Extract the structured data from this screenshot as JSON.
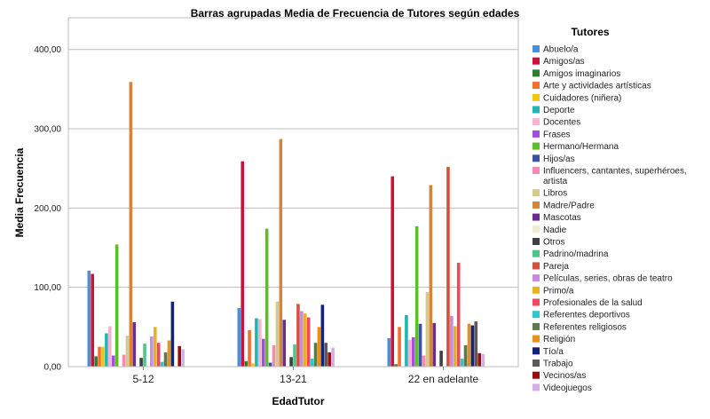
{
  "chart_data": {
    "type": "bar",
    "title": "Barras agrupadas Media de Frecuencia de Tutores según edades",
    "xlabel": "EdadTutor",
    "ylabel": "Media Frecuencia",
    "ylim": [
      0,
      440
    ],
    "yticks": [
      "0,00",
      "100,00",
      "200,00",
      "300,00",
      "400,00"
    ],
    "ytick_values": [
      0,
      100,
      200,
      300,
      400
    ],
    "grid": "horizontal",
    "legend_position": "right",
    "legend_title": "Tutores",
    "categories": [
      "5-12",
      "13-21",
      "22 en adelante"
    ],
    "series": [
      {
        "name": "Abuelo/a",
        "color": "#4a90d9",
        "values": [
          121,
          74,
          36
        ]
      },
      {
        "name": "Amigos/as",
        "color": "#d0103a",
        "values": [
          117,
          259,
          240
        ]
      },
      {
        "name": "Amigos imaginarios",
        "color": "#2e7d32",
        "values": [
          13,
          7,
          3
        ]
      },
      {
        "name": "Arte y actividades artísticas",
        "color": "#f26f30",
        "values": [
          25,
          46,
          50
        ]
      },
      {
        "name": "Cuidadores (niñera)",
        "color": "#f2c40f",
        "values": [
          25,
          4,
          0
        ]
      },
      {
        "name": "Deporte",
        "color": "#1fb7b0",
        "values": [
          42,
          61,
          65
        ]
      },
      {
        "name": "Docentes",
        "color": "#f7b2d0",
        "values": [
          51,
          60,
          34
        ]
      },
      {
        "name": "Frases",
        "color": "#a34dde",
        "values": [
          14,
          35,
          37
        ]
      },
      {
        "name": "Hermano/Hermana",
        "color": "#5cbf2a",
        "values": [
          154,
          174,
          177
        ]
      },
      {
        "name": "Hijos/as",
        "color": "#3f51a5",
        "values": [
          0,
          5,
          54
        ]
      },
      {
        "name": "Influencers, cantantes, superhéroes, artista",
        "color": "#f58bb0",
        "values": [
          15,
          27,
          14
        ]
      },
      {
        "name": "Libros",
        "color": "#d6c98e",
        "values": [
          39,
          82,
          94
        ]
      },
      {
        "name": "Madre/Padre",
        "color": "#d4843b",
        "values": [
          359,
          287,
          229
        ]
      },
      {
        "name": "Mascotas",
        "color": "#6a2c8f",
        "values": [
          56,
          59,
          55
        ]
      },
      {
        "name": "Nadie",
        "color": "#f0ead0",
        "values": [
          0,
          0,
          0
        ]
      },
      {
        "name": "Otros",
        "color": "#404040",
        "values": [
          11,
          12,
          20
        ]
      },
      {
        "name": "Padrino/madrina",
        "color": "#4fc48a",
        "values": [
          29,
          28,
          0
        ]
      },
      {
        "name": "Pareja",
        "color": "#d4503a",
        "values": [
          0,
          79,
          252
        ]
      },
      {
        "name": "Películas, series, obras de teatro",
        "color": "#c48be0",
        "values": [
          38,
          70,
          64
        ]
      },
      {
        "name": "Primo/a",
        "color": "#eab020",
        "values": [
          50,
          67,
          51
        ]
      },
      {
        "name": "Profesionales de la salud",
        "color": "#ee4860",
        "values": [
          30,
          62,
          131
        ]
      },
      {
        "name": "Referentes deportivos",
        "color": "#2ec9d0",
        "values": [
          6,
          10,
          10
        ]
      },
      {
        "name": "Referentes religiosos",
        "color": "#5c7a4e",
        "values": [
          18,
          30,
          27
        ]
      },
      {
        "name": "Religión",
        "color": "#e8901a",
        "values": [
          33,
          50,
          54
        ]
      },
      {
        "name": "Tío/a",
        "color": "#13237a",
        "values": [
          82,
          78,
          52
        ]
      },
      {
        "name": "Trabajo",
        "color": "#5a5a5a",
        "values": [
          0,
          30,
          57
        ]
      },
      {
        "name": "Vecinos/as",
        "color": "#9b0d0d",
        "values": [
          26,
          18,
          17
        ]
      },
      {
        "name": "Videojuegos",
        "color": "#d7aee6",
        "values": [
          22,
          24,
          16
        ]
      }
    ]
  }
}
